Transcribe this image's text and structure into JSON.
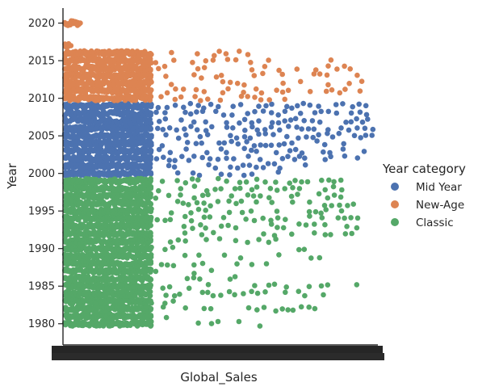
{
  "chart_data": {
    "type": "scatter",
    "subtype": "categorical strip plot (jittered)",
    "title": "",
    "xlabel": "Global_Sales",
    "ylabel": "Year",
    "ylim": [
      1977.5,
      2022
    ],
    "yticks": [
      1980,
      1985,
      1990,
      1995,
      2000,
      2005,
      2010,
      2015,
      2020
    ],
    "x_axis": "categorical; hundreds of overlapping tick labels render as a solid dark band",
    "grid": false,
    "legend": {
      "title": "Year category",
      "placement": "right"
    },
    "series": [
      {
        "name": "Mid Year",
        "color": "#4c72b0",
        "rows": [
          {
            "year": 2000,
            "extent": 0.7,
            "density": 0.55
          },
          {
            "year": 2001,
            "extent": 0.8,
            "density": 0.6
          },
          {
            "year": 2002,
            "extent": 0.95,
            "density": 0.62
          },
          {
            "year": 2003,
            "extent": 0.98,
            "density": 0.62
          },
          {
            "year": 2004,
            "extent": 0.96,
            "density": 0.64
          },
          {
            "year": 2005,
            "extent": 0.99,
            "density": 0.66
          },
          {
            "year": 2006,
            "extent": 1.0,
            "density": 0.68
          },
          {
            "year": 2007,
            "extent": 1.0,
            "density": 0.7
          },
          {
            "year": 2008,
            "extent": 1.0,
            "density": 0.72
          },
          {
            "year": 2009,
            "extent": 1.0,
            "density": 0.7
          }
        ]
      },
      {
        "name": "New-Age",
        "color": "#dd8452",
        "rows": [
          {
            "year": 2010,
            "extent": 0.72,
            "density": 0.55
          },
          {
            "year": 2011,
            "extent": 0.96,
            "density": 0.55
          },
          {
            "year": 2012,
            "extent": 0.96,
            "density": 0.5
          },
          {
            "year": 2013,
            "extent": 0.95,
            "density": 0.48
          },
          {
            "year": 2014,
            "extent": 0.92,
            "density": 0.46
          },
          {
            "year": 2015,
            "extent": 0.88,
            "density": 0.45
          },
          {
            "year": 2016,
            "extent": 0.6,
            "density": 0.45
          },
          {
            "year": 2017,
            "extent": 0.02,
            "density": 0.0
          },
          {
            "year": 2020,
            "extent": 0.05,
            "density": 0.0
          }
        ]
      },
      {
        "name": "Classic",
        "color": "#55a868",
        "rows": [
          {
            "year": 1980,
            "extent": 0.67,
            "density": 0.35
          },
          {
            "year": 1981,
            "extent": 0.37,
            "density": 0.55
          },
          {
            "year": 1982,
            "extent": 0.85,
            "density": 0.4
          },
          {
            "year": 1983,
            "extent": 0.4,
            "density": 0.45
          },
          {
            "year": 1984,
            "extent": 0.98,
            "density": 0.35
          },
          {
            "year": 1985,
            "extent": 1.0,
            "density": 0.3
          },
          {
            "year": 1986,
            "extent": 0.6,
            "density": 0.35
          },
          {
            "year": 1987,
            "extent": 0.5,
            "density": 0.3
          },
          {
            "year": 1988,
            "extent": 0.75,
            "density": 0.3
          },
          {
            "year": 1989,
            "extent": 0.99,
            "density": 0.3
          },
          {
            "year": 1990,
            "extent": 0.99,
            "density": 0.3
          },
          {
            "year": 1991,
            "extent": 0.7,
            "density": 0.45
          },
          {
            "year": 1992,
            "extent": 0.93,
            "density": 0.4
          },
          {
            "year": 1993,
            "extent": 0.98,
            "density": 0.45
          },
          {
            "year": 1994,
            "extent": 0.96,
            "density": 0.5
          },
          {
            "year": 1995,
            "extent": 0.9,
            "density": 0.55
          },
          {
            "year": 1996,
            "extent": 0.95,
            "density": 0.58
          },
          {
            "year": 1997,
            "extent": 0.93,
            "density": 0.6
          },
          {
            "year": 1998,
            "extent": 0.91,
            "density": 0.62
          },
          {
            "year": 1999,
            "extent": 0.9,
            "density": 0.6
          }
        ]
      }
    ]
  }
}
